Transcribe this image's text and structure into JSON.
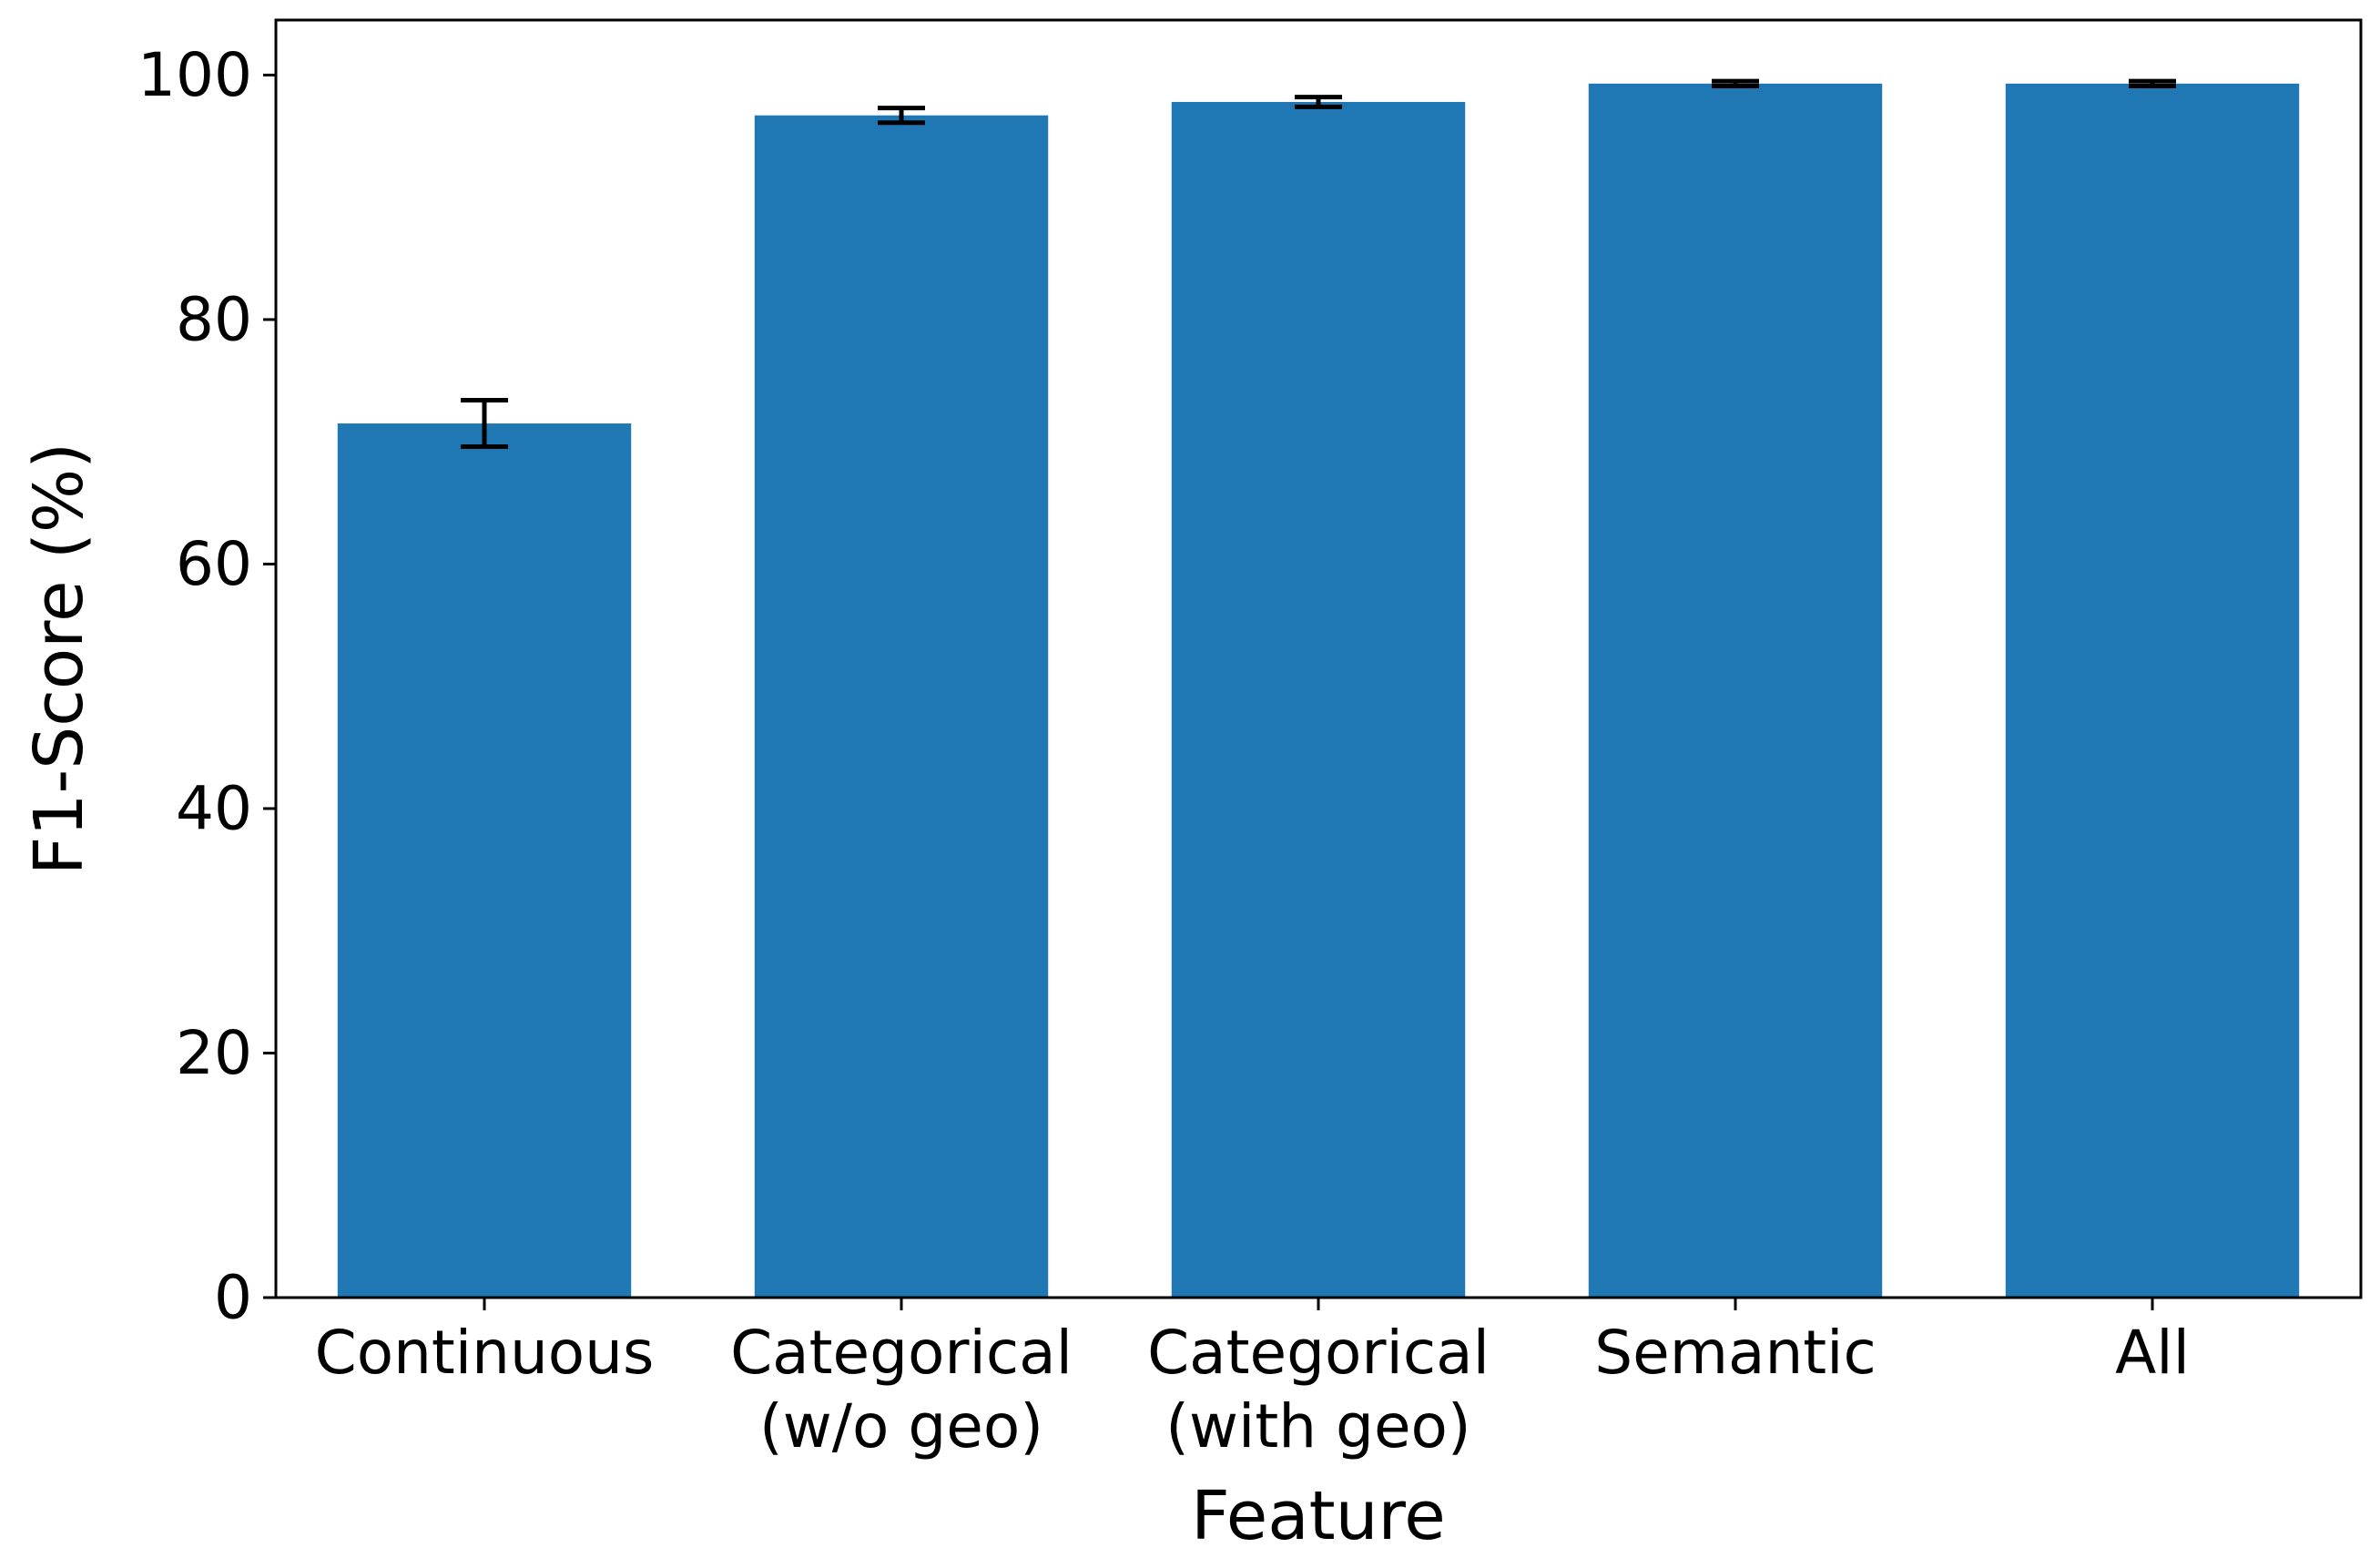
{
  "chart_data": {
    "type": "bar",
    "title": "",
    "xlabel": "Feature",
    "ylabel": "F1-Score (%)",
    "ylim": [
      0,
      104.5
    ],
    "yticks": [
      0,
      20,
      40,
      60,
      80,
      100
    ],
    "categories": [
      [
        "Continuous"
      ],
      [
        "Categorical",
        "(w/o geo)"
      ],
      [
        "Categorical",
        "(with geo)"
      ],
      [
        "Semantic"
      ],
      [
        "All"
      ]
    ],
    "values": [
      71.5,
      96.7,
      97.8,
      99.3,
      99.3
    ],
    "errors": [
      1.9,
      0.6,
      0.4,
      0.2,
      0.2
    ],
    "bar_color": "#1f77b4",
    "grid": false,
    "legend": "none"
  }
}
